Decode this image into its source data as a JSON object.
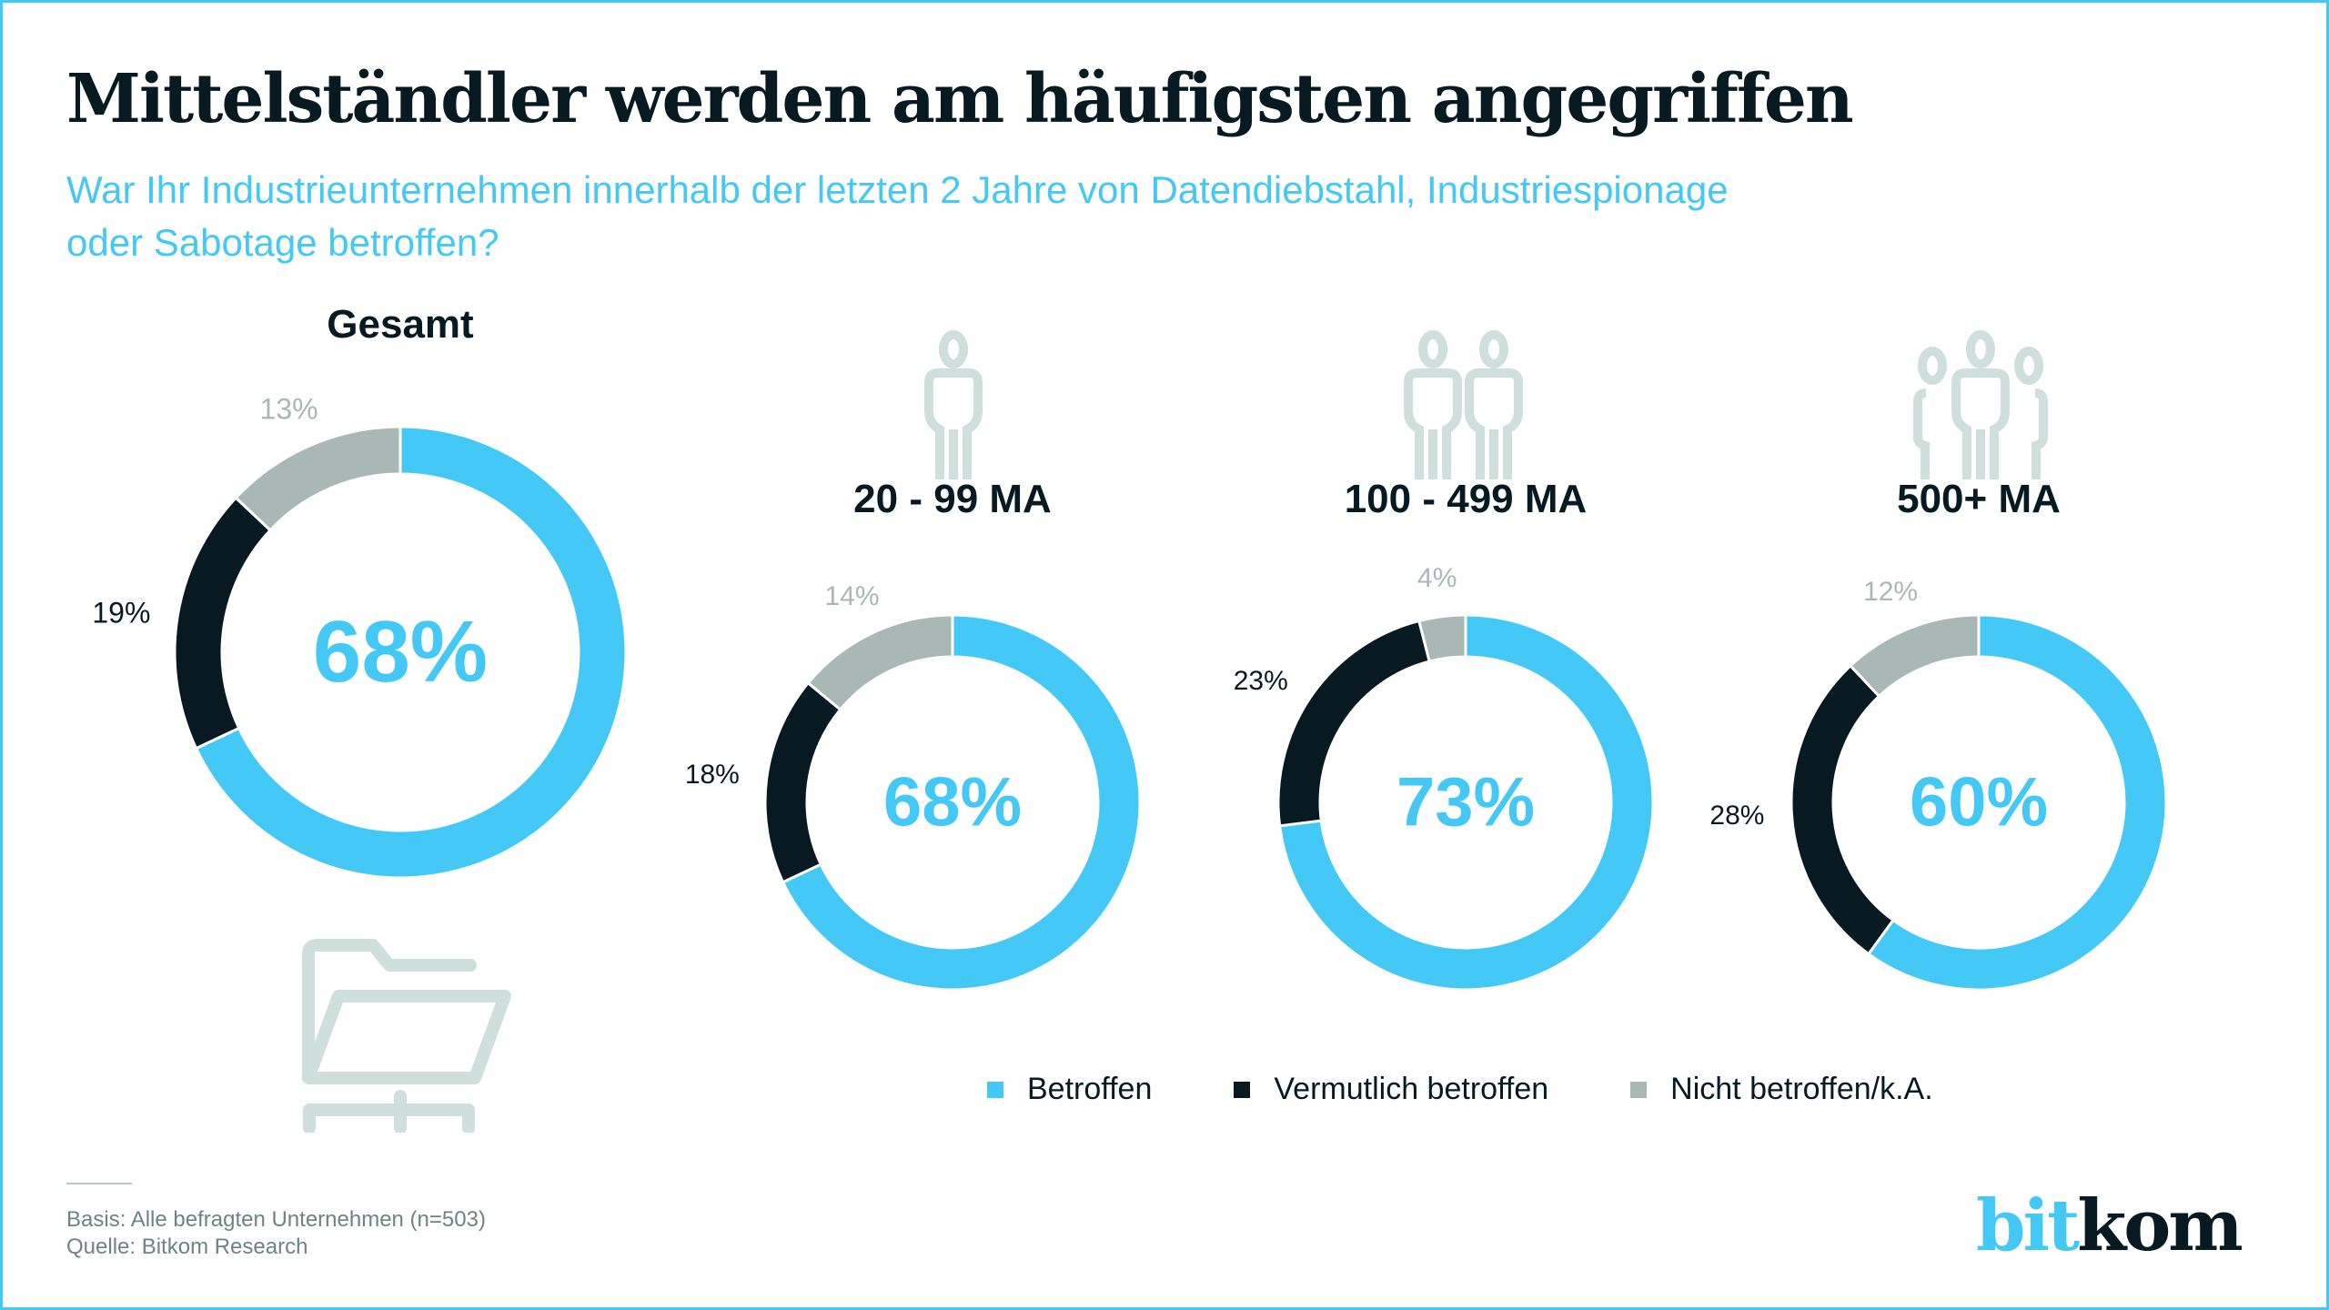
{
  "header": {
    "title": "Mittelständler werden am häufigsten angegriffen",
    "subtitle_line1": "War Ihr Industrieunternehmen innerhalb der letzten 2 Jahre von Datendiebstahl, Industriespionage",
    "subtitle_line2": "oder Sabotage betroffen?"
  },
  "colors": {
    "betroffen": "#44c8f5",
    "vermutlich": "#071a22",
    "nicht": "#a9b8b5",
    "icon": "#cfdfdc"
  },
  "chart_data": {
    "type": "pie",
    "variant": "donut",
    "series_names": [
      "Betroffen",
      "Vermutlich betroffen",
      "Nicht betroffen/k.A."
    ],
    "charts": [
      {
        "title": "Gesamt",
        "values": [
          68,
          19,
          13
        ],
        "labels": [
          "68%",
          "19%",
          "13%"
        ],
        "center_label": "68%",
        "icon": "folder-network-icon"
      },
      {
        "title": "20 - 99 MA",
        "values": [
          68,
          18,
          14
        ],
        "labels": [
          "68%",
          "18%",
          "14%"
        ],
        "center_label": "68%",
        "icon": "person-icon"
      },
      {
        "title": "100 - 499 MA",
        "values": [
          73,
          23,
          4
        ],
        "labels": [
          "73%",
          "23%",
          "4%"
        ],
        "center_label": "73%",
        "icon": "two-persons-icon"
      },
      {
        "title": "500+ MA",
        "values": [
          60,
          28,
          12
        ],
        "labels": [
          "60%",
          "28%",
          "12%"
        ],
        "center_label": "60%",
        "icon": "group-icon"
      }
    ],
    "unit": "%",
    "legend_position": "bottom-right"
  },
  "legend": {
    "items": [
      {
        "label": "Betroffen",
        "key": "betroffen"
      },
      {
        "label": "Vermutlich betroffen",
        "key": "vermutlich"
      },
      {
        "label": "Nicht betroffen/k.A.",
        "key": "nicht"
      }
    ]
  },
  "footer": {
    "basis": "Basis: Alle befragten Unternehmen (n=503)",
    "quelle": "Quelle: Bitkom Research"
  },
  "logo": {
    "part1": "bit",
    "part2": "kom"
  }
}
